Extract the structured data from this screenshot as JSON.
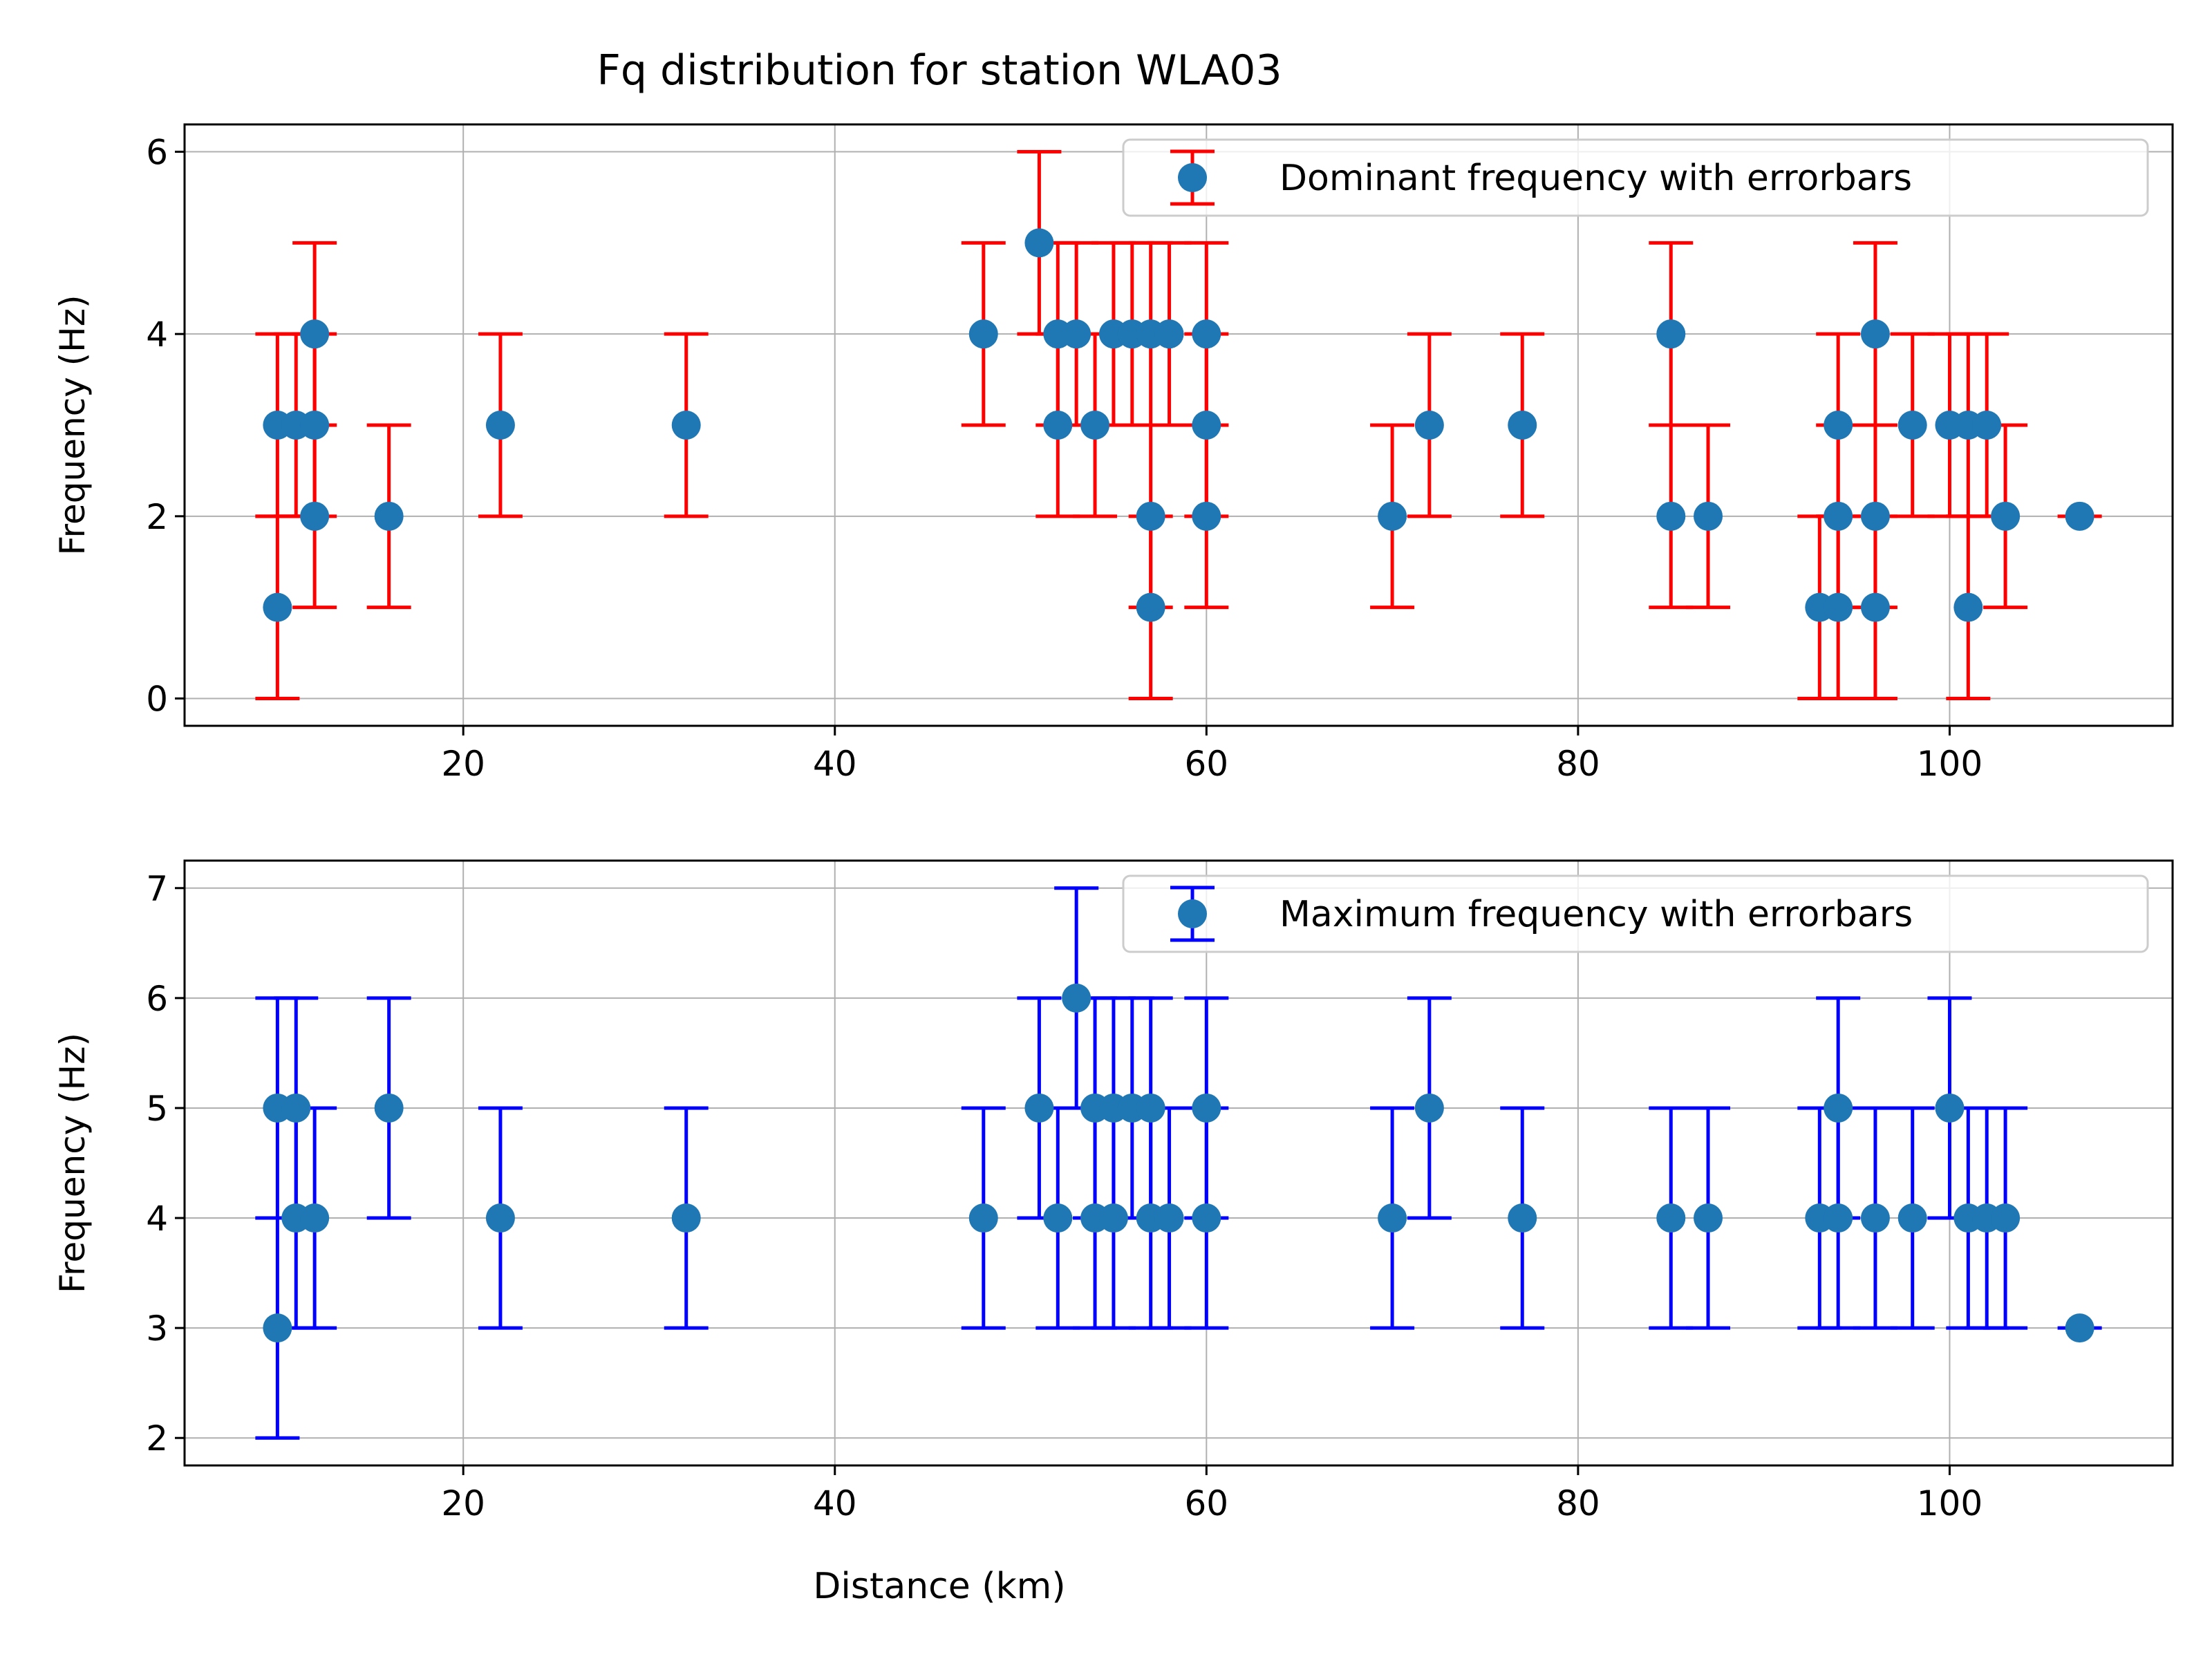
{
  "title": "Fq distribution for station WLA03",
  "xlabel": "Distance (km)",
  "chart_data": [
    {
      "type": "scatter",
      "xlabel": "",
      "ylabel": "Frequency (Hz)",
      "xlim": [
        5,
        112
      ],
      "ylim": [
        -0.3,
        6.3
      ],
      "xticks": [
        "20",
        "40",
        "60",
        "80",
        "100"
      ],
      "yticks": [
        "0",
        "2",
        "4",
        "6"
      ],
      "grid": true,
      "legend_position": "top-right",
      "marker_color": "#1f77b4",
      "error_color": "#ff0000",
      "series": [
        {
          "name": "Dominant frequency with errorbars",
          "points": [
            {
              "x": 10,
              "y": 3,
              "err": 1
            },
            {
              "x": 10,
              "y": 1,
              "err": 1
            },
            {
              "x": 11,
              "y": 3,
              "err": 1
            },
            {
              "x": 12,
              "y": 3,
              "err": 1
            },
            {
              "x": 12,
              "y": 4,
              "err": 1
            },
            {
              "x": 12,
              "y": 2,
              "err": 1
            },
            {
              "x": 16,
              "y": 2,
              "err": 1
            },
            {
              "x": 22,
              "y": 3,
              "err": 1
            },
            {
              "x": 32,
              "y": 3,
              "err": 1
            },
            {
              "x": 48,
              "y": 4,
              "err": 1
            },
            {
              "x": 51,
              "y": 5,
              "err": 1
            },
            {
              "x": 52,
              "y": 4,
              "err": 1
            },
            {
              "x": 52,
              "y": 3,
              "err": 1
            },
            {
              "x": 53,
              "y": 4,
              "err": 1
            },
            {
              "x": 54,
              "y": 3,
              "err": 1
            },
            {
              "x": 55,
              "y": 4,
              "err": 1
            },
            {
              "x": 56,
              "y": 4,
              "err": 1
            },
            {
              "x": 57,
              "y": 4,
              "err": 1
            },
            {
              "x": 57,
              "y": 2,
              "err": 1
            },
            {
              "x": 57,
              "y": 1,
              "err": 1
            },
            {
              "x": 58,
              "y": 4,
              "err": 1
            },
            {
              "x": 60,
              "y": 4,
              "err": 1
            },
            {
              "x": 60,
              "y": 3,
              "err": 1
            },
            {
              "x": 60,
              "y": 2,
              "err": 1
            },
            {
              "x": 70,
              "y": 2,
              "err": 1
            },
            {
              "x": 72,
              "y": 3,
              "err": 1
            },
            {
              "x": 77,
              "y": 3,
              "err": 1
            },
            {
              "x": 85,
              "y": 4,
              "err": 1
            },
            {
              "x": 85,
              "y": 2,
              "err": 1
            },
            {
              "x": 87,
              "y": 2,
              "err": 1
            },
            {
              "x": 93,
              "y": 1,
              "err": 1
            },
            {
              "x": 94,
              "y": 3,
              "err": 1
            },
            {
              "x": 94,
              "y": 2,
              "err": 1
            },
            {
              "x": 94,
              "y": 1,
              "err": 1
            },
            {
              "x": 96,
              "y": 4,
              "err": 1
            },
            {
              "x": 96,
              "y": 2,
              "err": 1
            },
            {
              "x": 96,
              "y": 1,
              "err": 1
            },
            {
              "x": 98,
              "y": 3,
              "err": 1
            },
            {
              "x": 100,
              "y": 3,
              "err": 1
            },
            {
              "x": 101,
              "y": 3,
              "err": 1
            },
            {
              "x": 101,
              "y": 1,
              "err": 1
            },
            {
              "x": 102,
              "y": 3,
              "err": 1
            },
            {
              "x": 103,
              "y": 2,
              "err": 1
            },
            {
              "x": 107,
              "y": 2,
              "err": 0
            }
          ]
        }
      ]
    },
    {
      "type": "scatter",
      "xlabel": "Distance (km)",
      "ylabel": "Frequency (Hz)",
      "xlim": [
        5,
        112
      ],
      "ylim": [
        1.75,
        7.25
      ],
      "xticks": [
        "20",
        "40",
        "60",
        "80",
        "100"
      ],
      "yticks": [
        "2",
        "3",
        "4",
        "5",
        "6",
        "7"
      ],
      "grid": true,
      "legend_position": "top-right",
      "marker_color": "#1f77b4",
      "error_color": "#0000ff",
      "series": [
        {
          "name": "Maximum frequency with errorbars",
          "points": [
            {
              "x": 10,
              "y": 5,
              "err": 1
            },
            {
              "x": 10,
              "y": 3,
              "err": 1
            },
            {
              "x": 11,
              "y": 5,
              "err": 1
            },
            {
              "x": 11,
              "y": 4,
              "err": 1
            },
            {
              "x": 12,
              "y": 4,
              "err": 1
            },
            {
              "x": 16,
              "y": 5,
              "err": 1
            },
            {
              "x": 22,
              "y": 4,
              "err": 1
            },
            {
              "x": 32,
              "y": 4,
              "err": 1
            },
            {
              "x": 48,
              "y": 4,
              "err": 1
            },
            {
              "x": 51,
              "y": 5,
              "err": 1
            },
            {
              "x": 52,
              "y": 4,
              "err": 1
            },
            {
              "x": 53,
              "y": 6,
              "err": 1
            },
            {
              "x": 54,
              "y": 5,
              "err": 1
            },
            {
              "x": 54,
              "y": 4,
              "err": 1
            },
            {
              "x": 55,
              "y": 5,
              "err": 1
            },
            {
              "x": 55,
              "y": 4,
              "err": 1
            },
            {
              "x": 56,
              "y": 5,
              "err": 1
            },
            {
              "x": 57,
              "y": 5,
              "err": 1
            },
            {
              "x": 57,
              "y": 4,
              "err": 1
            },
            {
              "x": 58,
              "y": 4,
              "err": 1
            },
            {
              "x": 60,
              "y": 5,
              "err": 1
            },
            {
              "x": 60,
              "y": 4,
              "err": 1
            },
            {
              "x": 70,
              "y": 4,
              "err": 1
            },
            {
              "x": 72,
              "y": 5,
              "err": 1
            },
            {
              "x": 77,
              "y": 4,
              "err": 1
            },
            {
              "x": 85,
              "y": 4,
              "err": 1
            },
            {
              "x": 87,
              "y": 4,
              "err": 1
            },
            {
              "x": 93,
              "y": 4,
              "err": 1
            },
            {
              "x": 94,
              "y": 5,
              "err": 1
            },
            {
              "x": 94,
              "y": 4,
              "err": 1
            },
            {
              "x": 96,
              "y": 4,
              "err": 1
            },
            {
              "x": 98,
              "y": 4,
              "err": 1
            },
            {
              "x": 100,
              "y": 5,
              "err": 1
            },
            {
              "x": 101,
              "y": 4,
              "err": 1
            },
            {
              "x": 102,
              "y": 4,
              "err": 1
            },
            {
              "x": 103,
              "y": 4,
              "err": 1
            },
            {
              "x": 107,
              "y": 3,
              "err": 0
            }
          ]
        }
      ]
    }
  ]
}
